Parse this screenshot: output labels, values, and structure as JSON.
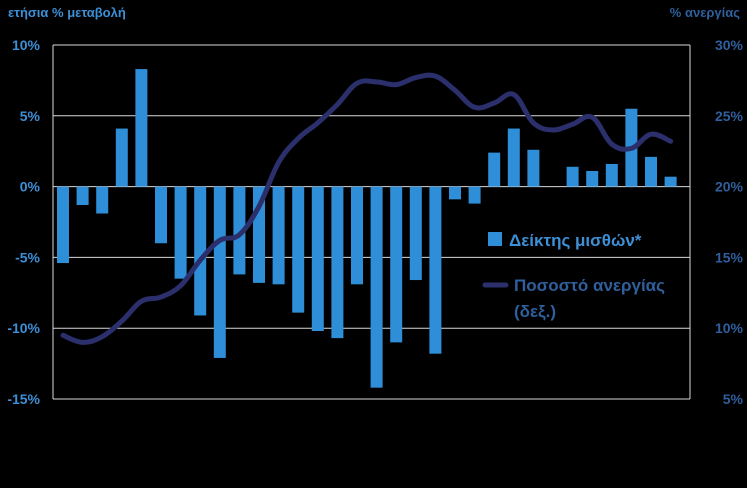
{
  "chart_data": {
    "type": "bar",
    "left_axis_title": "ετήσια % μεταβολή",
    "right_axis_title": "% ανεργίας",
    "ylim_left": [
      -15,
      10
    ],
    "ylim_right": [
      5,
      30
    ],
    "yticks_left": [
      "10%",
      "5%",
      "0%",
      "-5%",
      "-10%",
      "-15%"
    ],
    "yticks_right": [
      "30%",
      "25%",
      "20%",
      "15%",
      "10%",
      "5%"
    ],
    "grid": true,
    "legend_position": "right-middle",
    "series": [
      {
        "name": "Δείκτης μισθών*",
        "kind": "bar",
        "axis": "left",
        "color": "#2e8fd8",
        "values": [
          -5.4,
          -1.3,
          -1.9,
          4.1,
          8.3,
          -4.0,
          -6.5,
          -9.1,
          -12.1,
          -6.2,
          -6.8,
          -6.9,
          -8.9,
          -10.2,
          -10.7,
          -6.9,
          -14.2,
          -11.0,
          -6.6,
          -11.8,
          -0.9,
          -1.2,
          2.4,
          4.1,
          2.6,
          null,
          1.4,
          1.1,
          1.6,
          5.5,
          2.1,
          0.7
        ]
      },
      {
        "name": "Ποσοστό ανεργίας",
        "name_line2": "(δεξ.)",
        "kind": "line",
        "axis": "right",
        "color": "#2b2f6b",
        "values": [
          9.5,
          9.0,
          9.4,
          10.5,
          11.9,
          12.2,
          13.0,
          14.8,
          16.2,
          16.6,
          18.6,
          21.7,
          23.4,
          24.5,
          25.8,
          27.3,
          27.4,
          27.2,
          27.7,
          27.8,
          26.8,
          25.6,
          25.9,
          26.5,
          24.5,
          24.0,
          24.4,
          24.9,
          23.0,
          22.7,
          23.7,
          23.2
        ]
      }
    ]
  }
}
